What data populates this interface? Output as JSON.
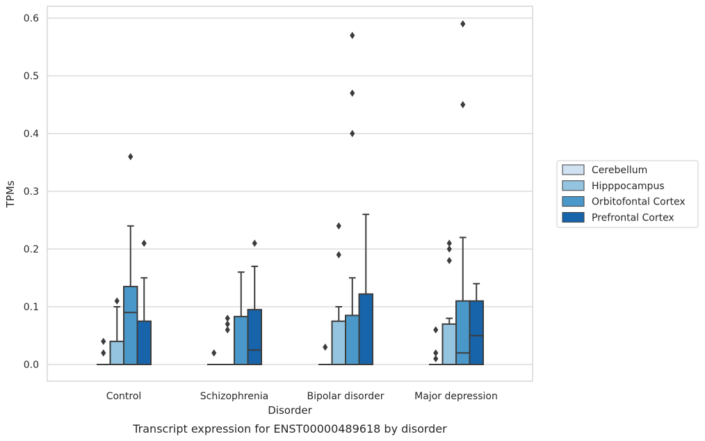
{
  "chart_data": {
    "type": "box",
    "title": "",
    "caption": "Transcript expression for ENST00000489618 by disorder",
    "xlabel": "Disorder",
    "ylabel": "TPMs",
    "ylim": [
      -0.028,
      0.62
    ],
    "yticks": [
      0.0,
      0.1,
      0.2,
      0.3,
      0.4,
      0.5,
      0.6
    ],
    "ytick_labels": [
      "0.0",
      "0.1",
      "0.2",
      "0.3",
      "0.4",
      "0.5",
      "0.6"
    ],
    "grid": "horizontal",
    "legend_position": "right",
    "categories": [
      "Control",
      "Schizophrenia",
      "Bipolar disorder",
      "Major depression"
    ],
    "series": [
      {
        "name": "Cerebellum",
        "color": "#d0e1f2",
        "boxes": [
          {
            "q1": 0,
            "median": 0,
            "q3": 0,
            "whisker_low": 0,
            "whisker_high": 0,
            "outliers": [
              0.02,
              0.04
            ]
          },
          {
            "q1": 0,
            "median": 0,
            "q3": 0,
            "whisker_low": 0,
            "whisker_high": 0,
            "outliers": [
              0.02
            ]
          },
          {
            "q1": 0,
            "median": 0,
            "q3": 0,
            "whisker_low": 0,
            "whisker_high": 0,
            "outliers": [
              0.03
            ]
          },
          {
            "q1": 0,
            "median": 0,
            "q3": 0,
            "whisker_low": 0,
            "whisker_high": 0,
            "outliers": [
              0.01,
              0.02,
              0.06
            ]
          }
        ]
      },
      {
        "name": "Hipppocampus",
        "color": "#94c4df",
        "boxes": [
          {
            "q1": 0,
            "median": 0,
            "q3": 0.04,
            "whisker_low": 0,
            "whisker_high": 0.1,
            "outliers": [
              0.11
            ]
          },
          {
            "q1": 0,
            "median": 0,
            "q3": 0,
            "whisker_low": 0,
            "whisker_high": 0,
            "outliers": [
              0.06,
              0.07,
              0.08
            ]
          },
          {
            "q1": 0,
            "median": 0,
            "q3": 0.075,
            "whisker_low": 0,
            "whisker_high": 0.1,
            "outliers": [
              0.19,
              0.24
            ]
          },
          {
            "q1": 0,
            "median": 0,
            "q3": 0.07,
            "whisker_low": 0,
            "whisker_high": 0.08,
            "outliers": [
              0.18,
              0.2,
              0.21
            ]
          }
        ]
      },
      {
        "name": "Orbitofontal Cortex",
        "color": "#4a98c9",
        "boxes": [
          {
            "q1": 0,
            "median": 0.09,
            "q3": 0.135,
            "whisker_low": 0,
            "whisker_high": 0.24,
            "outliers": [
              0.36
            ]
          },
          {
            "q1": 0,
            "median": 0,
            "q3": 0.083,
            "whisker_low": 0,
            "whisker_high": 0.16,
            "outliers": []
          },
          {
            "q1": 0,
            "median": 0,
            "q3": 0.085,
            "whisker_low": 0,
            "whisker_high": 0.15,
            "outliers": [
              0.4,
              0.47,
              0.57
            ]
          },
          {
            "q1": 0,
            "median": 0.02,
            "q3": 0.11,
            "whisker_low": 0,
            "whisker_high": 0.22,
            "outliers": [
              0.45,
              0.59
            ]
          }
        ]
      },
      {
        "name": "Prefrontal Cortex",
        "color": "#1764ab",
        "boxes": [
          {
            "q1": 0,
            "median": 0,
            "q3": 0.075,
            "whisker_low": 0,
            "whisker_high": 0.15,
            "outliers": [
              0.21
            ]
          },
          {
            "q1": 0,
            "median": 0.025,
            "q3": 0.095,
            "whisker_low": 0,
            "whisker_high": 0.17,
            "outliers": [
              0.21
            ]
          },
          {
            "q1": 0,
            "median": 0,
            "q3": 0.122,
            "whisker_low": 0,
            "whisker_high": 0.26,
            "outliers": []
          },
          {
            "q1": 0,
            "median": 0.05,
            "q3": 0.11,
            "whisker_low": 0,
            "whisker_high": 0.14,
            "outliers": []
          }
        ]
      }
    ]
  }
}
